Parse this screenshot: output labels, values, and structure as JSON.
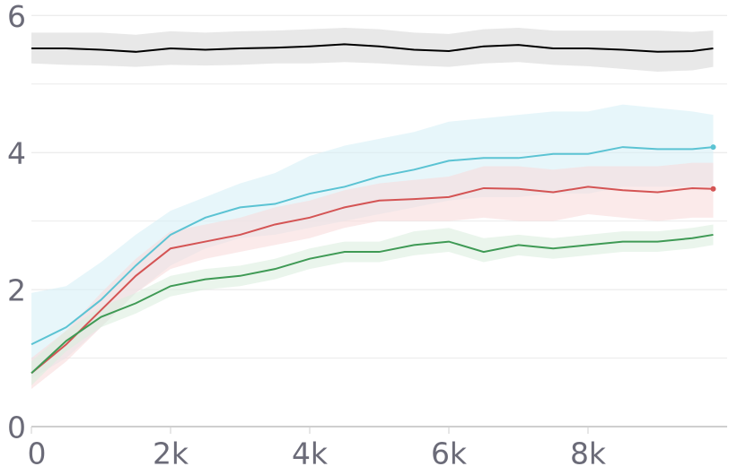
{
  "chart_data": {
    "type": "line",
    "x": [
      0,
      500,
      1000,
      1500,
      2000,
      2500,
      3000,
      3500,
      4000,
      4500,
      5000,
      5500,
      6000,
      6500,
      7000,
      7500,
      8000,
      8500,
      9000,
      9500,
      9800
    ],
    "xlim": [
      0,
      10000
    ],
    "xticks": [
      0,
      {
        "value": 2000,
        "label": "2k"
      },
      {
        "value": 4000,
        "label": "4k"
      },
      {
        "value": 6000,
        "label": "6k"
      },
      {
        "value": 8000,
        "label": "8k"
      }
    ],
    "ylim": [
      0,
      6.2
    ],
    "yticks": [
      0,
      2,
      4,
      6
    ],
    "minor_yticks": [
      1,
      3,
      5
    ],
    "grid": true,
    "series": [
      {
        "color": "#000000",
        "band_color": "#d9d9d9",
        "end_marker": false,
        "values": [
          5.52,
          5.52,
          5.5,
          5.47,
          5.52,
          5.5,
          5.52,
          5.53,
          5.55,
          5.58,
          5.55,
          5.5,
          5.48,
          5.55,
          5.57,
          5.52,
          5.52,
          5.5,
          5.47,
          5.48,
          5.52
        ],
        "lower": [
          5.3,
          5.28,
          5.27,
          5.25,
          5.28,
          5.27,
          5.28,
          5.3,
          5.3,
          5.32,
          5.3,
          5.27,
          5.25,
          5.3,
          5.32,
          5.28,
          5.26,
          5.22,
          5.18,
          5.2,
          5.25
        ],
        "upper": [
          5.75,
          5.75,
          5.75,
          5.72,
          5.77,
          5.75,
          5.77,
          5.78,
          5.8,
          5.82,
          5.8,
          5.75,
          5.73,
          5.8,
          5.82,
          5.78,
          5.78,
          5.78,
          5.78,
          5.76,
          5.78
        ]
      },
      {
        "color": "#5bc3d3",
        "band_color": "#d7f0f6",
        "end_marker": true,
        "values": [
          1.2,
          1.45,
          1.85,
          2.35,
          2.8,
          3.05,
          3.2,
          3.25,
          3.4,
          3.5,
          3.65,
          3.75,
          3.88,
          3.92,
          3.92,
          3.98,
          3.98,
          4.08,
          4.05,
          4.05,
          4.08
        ],
        "lower": [
          0.7,
          1.0,
          1.45,
          1.95,
          2.35,
          2.6,
          2.75,
          2.8,
          2.9,
          3.0,
          3.1,
          3.2,
          3.3,
          3.35,
          3.35,
          3.4,
          3.4,
          3.5,
          3.5,
          3.5,
          3.5
        ],
        "upper": [
          1.95,
          2.05,
          2.4,
          2.8,
          3.15,
          3.35,
          3.55,
          3.7,
          3.95,
          4.1,
          4.2,
          4.3,
          4.45,
          4.5,
          4.55,
          4.6,
          4.6,
          4.7,
          4.65,
          4.6,
          4.55
        ]
      },
      {
        "color": "#d45454",
        "band_color": "#f8dcdc",
        "end_marker": true,
        "values": [
          0.78,
          1.2,
          1.7,
          2.2,
          2.6,
          2.7,
          2.8,
          2.95,
          3.05,
          3.2,
          3.3,
          3.32,
          3.35,
          3.48,
          3.47,
          3.42,
          3.5,
          3.45,
          3.42,
          3.48,
          3.47
        ],
        "lower": [
          0.55,
          0.95,
          1.45,
          1.95,
          2.3,
          2.45,
          2.55,
          2.65,
          2.75,
          2.9,
          3.0,
          3.0,
          3.0,
          3.05,
          3.0,
          3.0,
          3.1,
          3.05,
          3.0,
          3.05,
          3.05
        ],
        "upper": [
          1.0,
          1.4,
          1.95,
          2.45,
          2.85,
          2.95,
          3.05,
          3.2,
          3.3,
          3.45,
          3.55,
          3.6,
          3.65,
          3.8,
          3.8,
          3.75,
          3.8,
          3.8,
          3.8,
          3.85,
          3.85
        ]
      },
      {
        "color": "#3f9a55",
        "band_color": "#dcefdf",
        "end_marker": false,
        "values": [
          0.78,
          1.25,
          1.6,
          1.8,
          2.05,
          2.15,
          2.2,
          2.3,
          2.45,
          2.55,
          2.55,
          2.65,
          2.7,
          2.55,
          2.65,
          2.6,
          2.65,
          2.7,
          2.7,
          2.75,
          2.8
        ],
        "lower": [
          0.6,
          1.1,
          1.45,
          1.65,
          1.9,
          2.0,
          2.05,
          2.15,
          2.3,
          2.4,
          2.4,
          2.5,
          2.55,
          2.4,
          2.5,
          2.45,
          2.5,
          2.55,
          2.55,
          2.6,
          2.65
        ],
        "upper": [
          0.95,
          1.4,
          1.75,
          1.95,
          2.2,
          2.3,
          2.35,
          2.45,
          2.6,
          2.7,
          2.7,
          2.85,
          2.9,
          2.75,
          2.8,
          2.75,
          2.8,
          2.85,
          2.85,
          2.9,
          2.95
        ]
      }
    ]
  }
}
